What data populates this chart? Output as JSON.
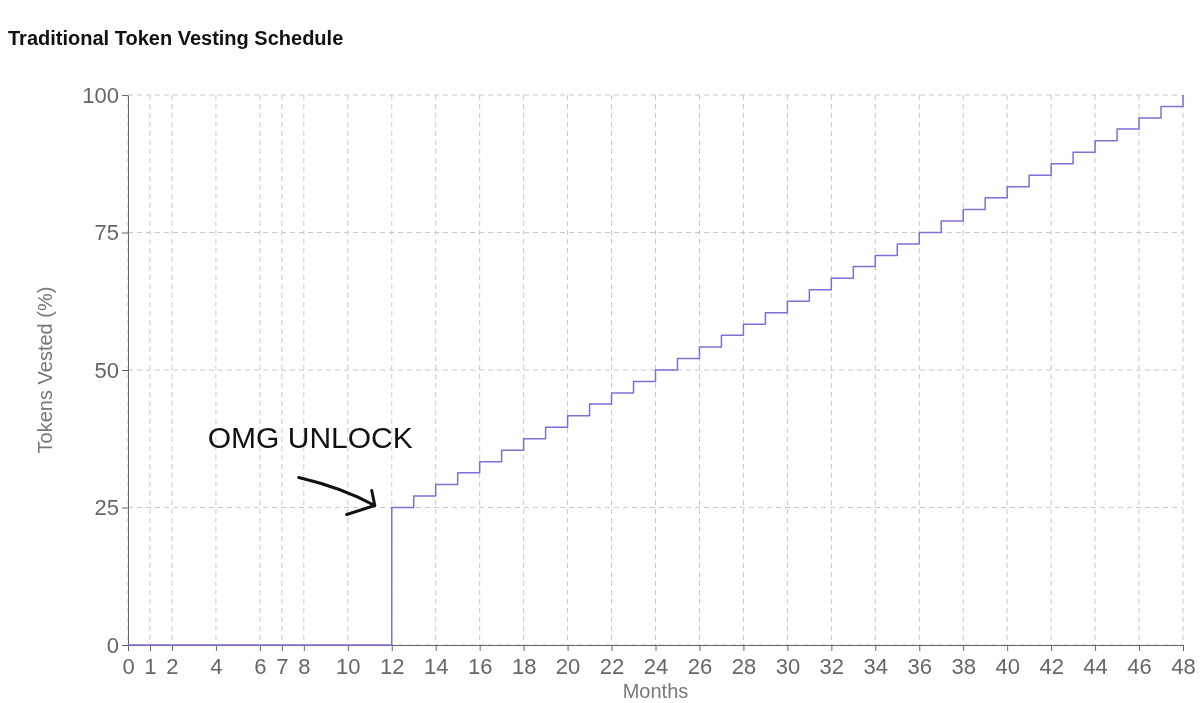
{
  "chart_data": {
    "type": "step",
    "title": "Traditional Token Vesting Schedule",
    "xlabel": "Months",
    "ylabel": "Tokens Vested (%)",
    "x": [
      0,
      12,
      13,
      14,
      15,
      16,
      17,
      18,
      19,
      20,
      21,
      22,
      23,
      24,
      25,
      26,
      27,
      28,
      29,
      30,
      31,
      32,
      33,
      34,
      35,
      36,
      37,
      38,
      39,
      40,
      41,
      42,
      43,
      44,
      45,
      46,
      47,
      48
    ],
    "series": [
      {
        "color": "#7b70d6",
        "values": [
          0,
          25,
          27.1,
          29.2,
          31.3,
          33.3,
          35.4,
          37.5,
          39.6,
          41.7,
          43.8,
          45.8,
          47.9,
          50,
          52.1,
          54.2,
          56.3,
          58.3,
          60.4,
          62.5,
          64.6,
          66.7,
          68.8,
          70.8,
          72.9,
          75,
          77.1,
          79.2,
          81.3,
          83.3,
          85.4,
          87.5,
          89.6,
          91.7,
          93.8,
          95.8,
          97.9,
          100
        ]
      }
    ],
    "xlim": [
      0,
      48
    ],
    "xticks": [
      0,
      1,
      2,
      4,
      6,
      7,
      8,
      10,
      12,
      14,
      16,
      18,
      20,
      22,
      24,
      26,
      28,
      30,
      32,
      34,
      36,
      38,
      40,
      42,
      44,
      46,
      48
    ],
    "ylim": [
      0,
      100
    ],
    "yticks": [
      0,
      25,
      50,
      75,
      100
    ],
    "grid": true,
    "marker": "none",
    "line_style": "solid",
    "annotations": [
      {
        "text": "OMG UNLOCK",
        "x": 12,
        "y": 25
      }
    ]
  }
}
